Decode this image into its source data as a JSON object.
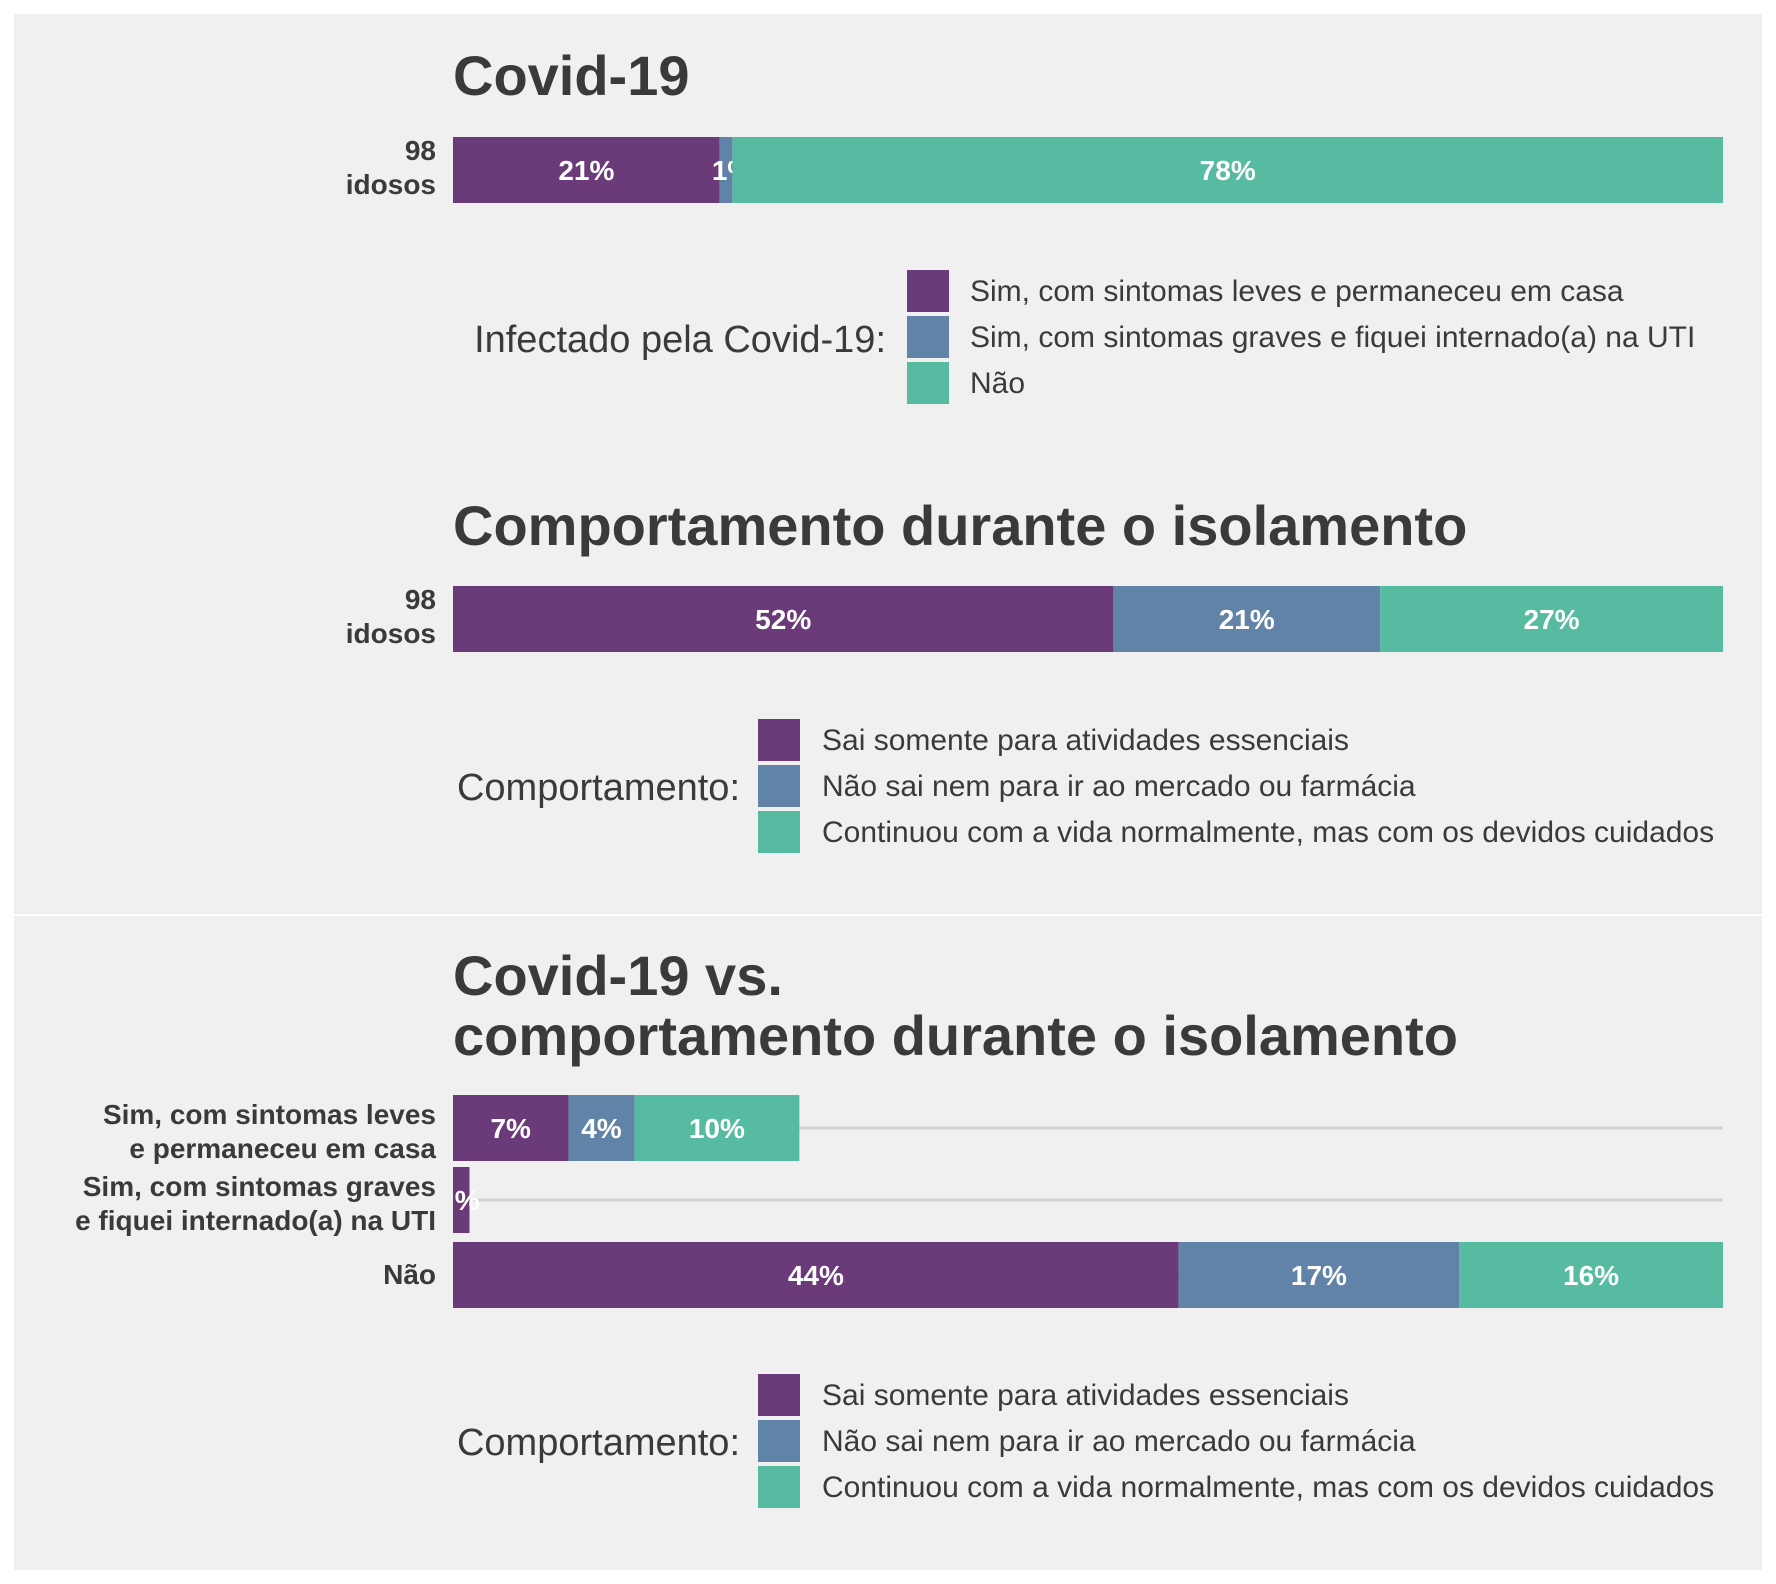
{
  "colors": {
    "background": "#ffffff",
    "panel": "#f0f0f0",
    "grid": "#d0d0d0",
    "purple": "#6b3a78",
    "blue": "#6283a8",
    "green": "#56bba0",
    "text": "#3a3a3a"
  },
  "chart_data": [
    {
      "type": "bar",
      "orientation": "horizontal",
      "stacked": true,
      "title": "Covid-19",
      "categories": [
        "98\nidosos"
      ],
      "series": [
        {
          "name": "Sim, com sintomas leves e permaneceu em casa",
          "color": "#6b3a78",
          "values": [
            21
          ]
        },
        {
          "name": "Sim, com sintomas graves e fiquei internado(a) na UTI",
          "color": "#6283a8",
          "values": [
            1
          ]
        },
        {
          "name": "Não",
          "color": "#56bba0",
          "values": [
            78
          ]
        }
      ],
      "value_labels": [
        [
          "21%",
          "1%",
          "78%"
        ]
      ],
      "xlim": [
        0,
        100
      ],
      "legend_title": "Infectado pela Covid-19:",
      "legend_position": "bottom"
    },
    {
      "type": "bar",
      "orientation": "horizontal",
      "stacked": true,
      "title": "Comportamento durante o isolamento",
      "categories": [
        "98\nidosos"
      ],
      "series": [
        {
          "name": "Sai somente para atividades essenciais",
          "color": "#6b3a78",
          "values": [
            52
          ]
        },
        {
          "name": "Não sai nem para ir ao mercado ou farmácia",
          "color": "#6283a8",
          "values": [
            21
          ]
        },
        {
          "name": "Continuou com a vida normalmente, mas com os devidos cuidados",
          "color": "#56bba0",
          "values": [
            27
          ]
        }
      ],
      "value_labels": [
        [
          "52%",
          "21%",
          "27%"
        ]
      ],
      "xlim": [
        0,
        100
      ],
      "legend_title": "Comportamento:",
      "legend_position": "bottom"
    },
    {
      "type": "bar",
      "orientation": "horizontal",
      "stacked": true,
      "title": "Covid-19 vs.\ncomportamento durante o isolamento",
      "categories": [
        "Sim, com sintomas leves\ne permaneceu em casa",
        "Sim, com sintomas graves\ne fiquei internado(a) na UTI",
        "Não"
      ],
      "series": [
        {
          "name": "Sai somente para atividades essenciais",
          "color": "#6b3a78",
          "values": [
            7,
            1,
            44
          ]
        },
        {
          "name": "Não sai nem para ir ao mercado ou farmácia",
          "color": "#6283a8",
          "values": [
            4,
            0,
            17
          ]
        },
        {
          "name": "Continuou com a vida normalmente, mas com os devidos cuidados",
          "color": "#56bba0",
          "values": [
            10,
            0,
            16
          ]
        }
      ],
      "value_labels": [
        [
          "7%",
          "4%",
          "10%"
        ],
        [
          "%",
          "",
          ""
        ],
        [
          "44%",
          "17%",
          "16%"
        ]
      ],
      "xlim": [
        0,
        77
      ],
      "legend_title": "Comportamento:",
      "legend_position": "bottom"
    }
  ]
}
